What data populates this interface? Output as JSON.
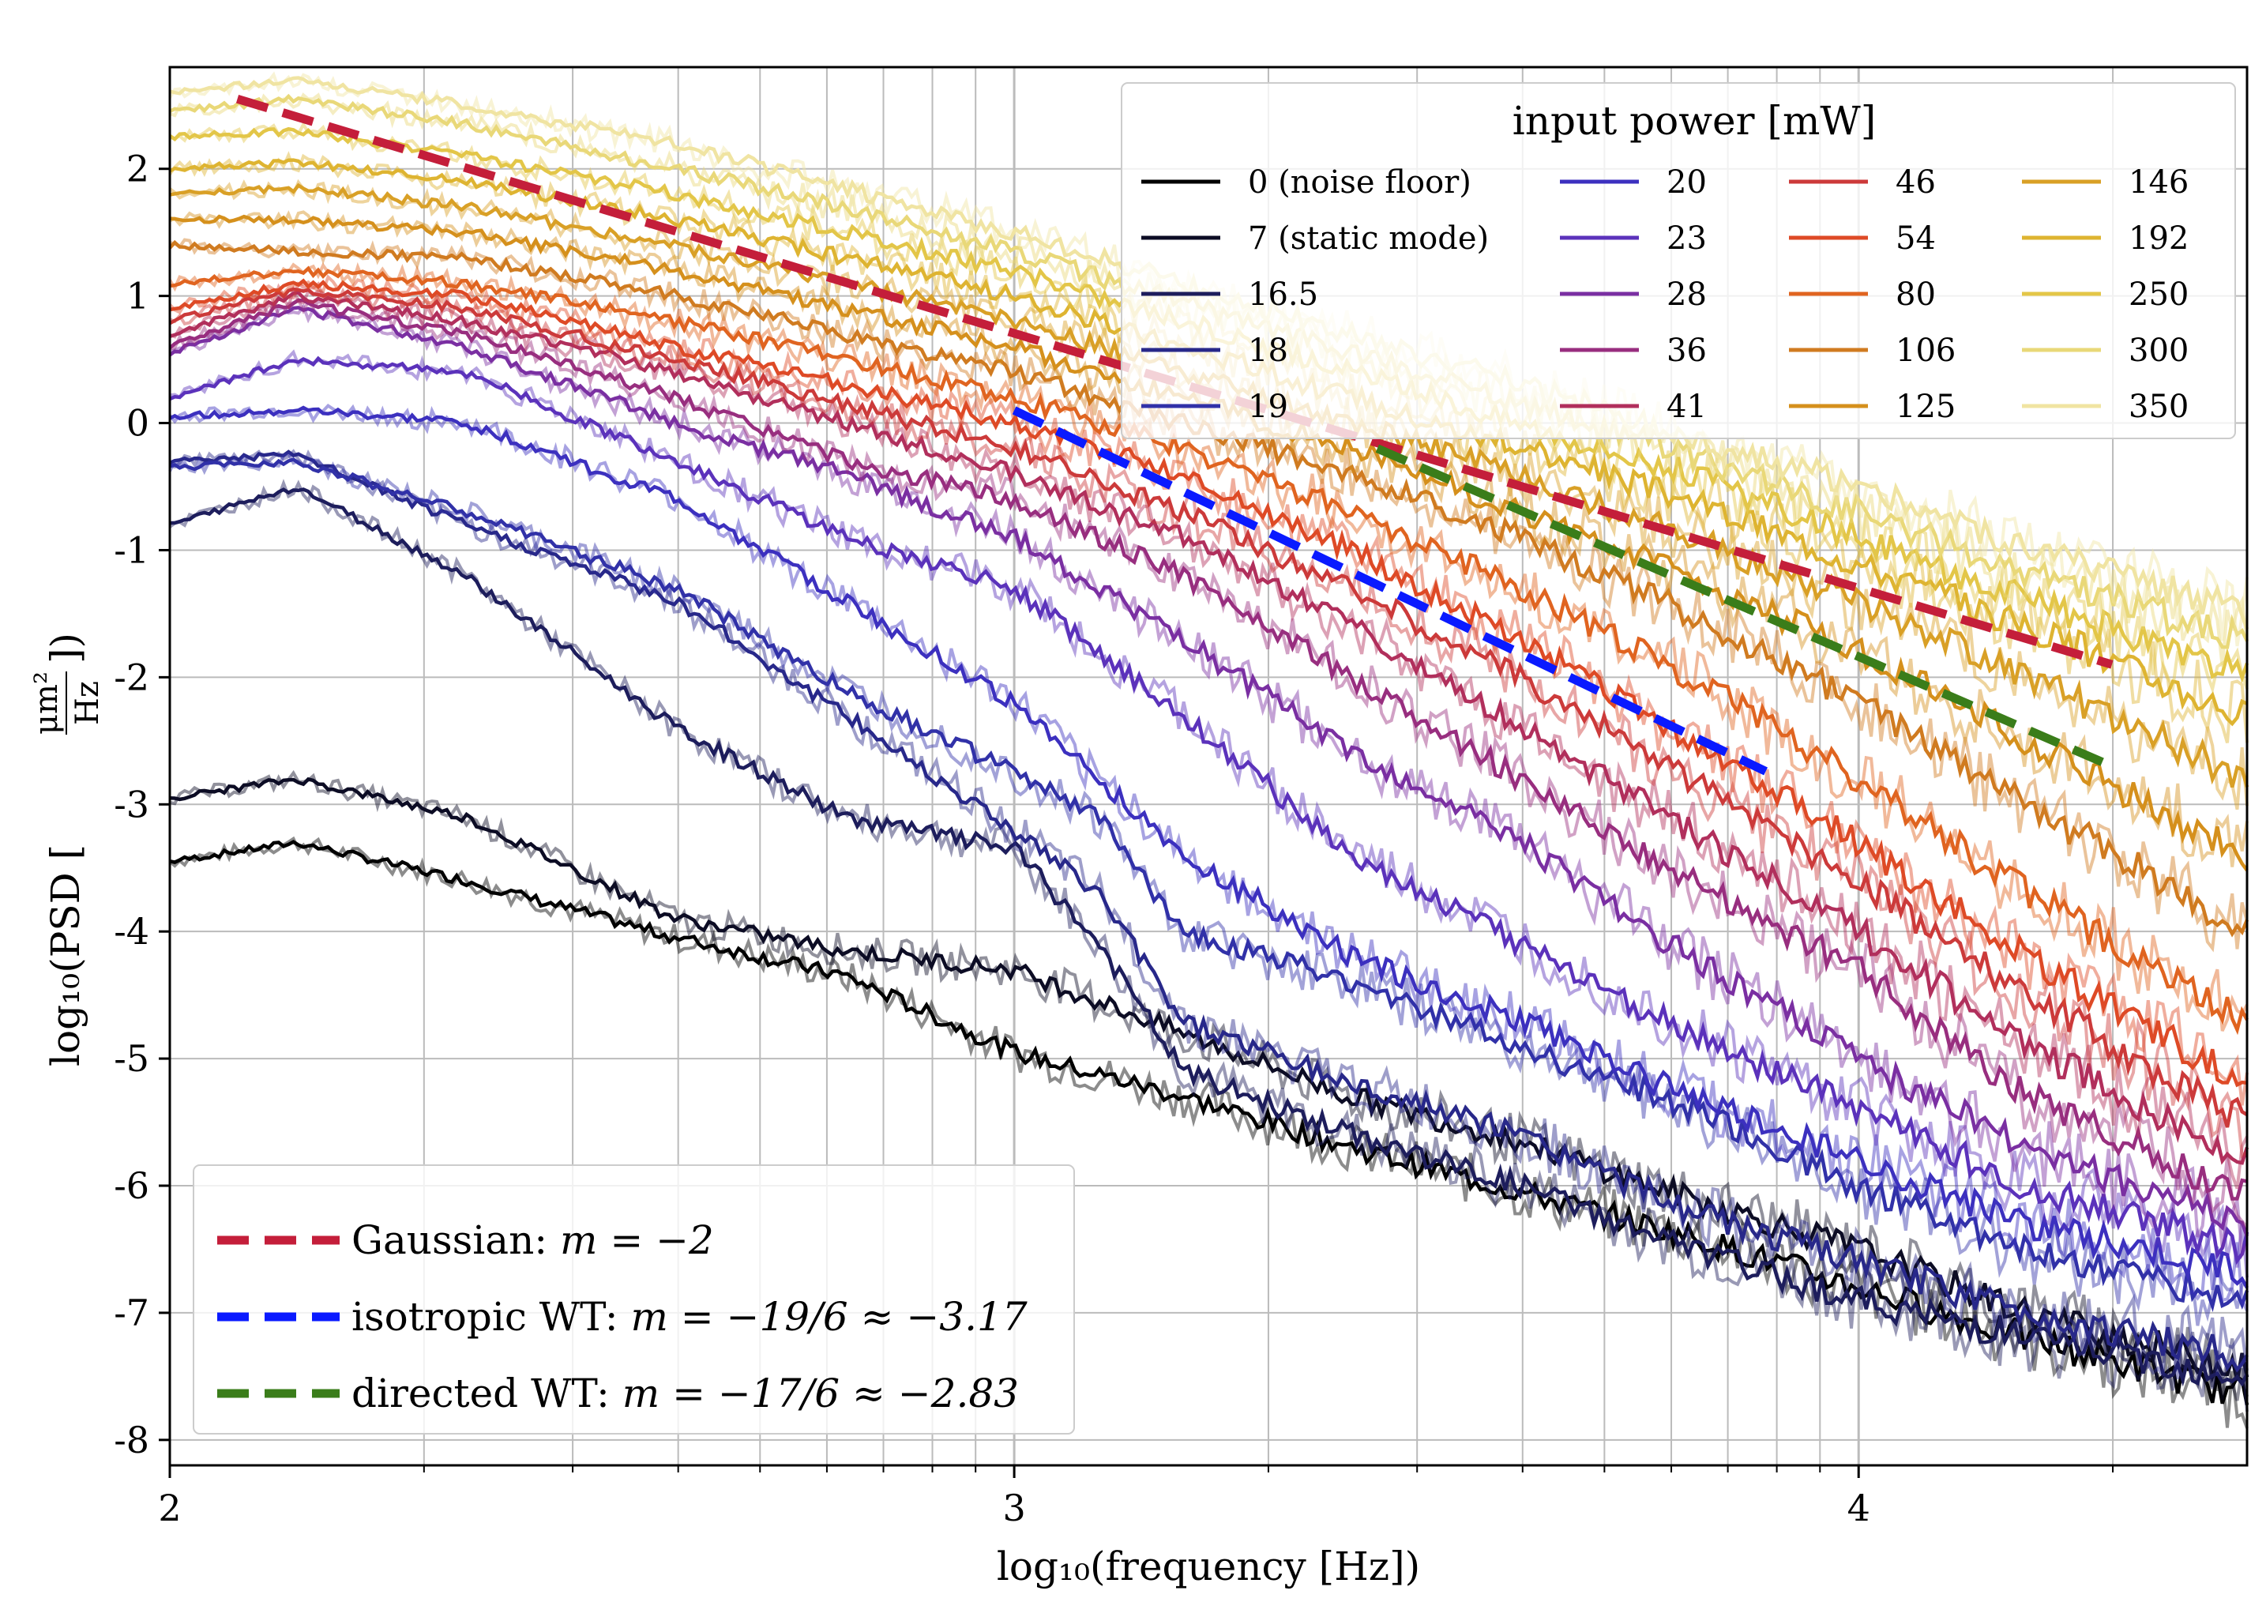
{
  "chart_data": {
    "type": "line",
    "xlabel": "log₁₀(frequency [Hz])",
    "ylabel_main": "log₁₀(PSD [",
    "ylabel_units_num": "μm²",
    "ylabel_units_den": "Hz",
    "xlim": [
      2.0,
      4.46
    ],
    "ylim": [
      -8.2,
      2.8
    ],
    "x_scale": "log",
    "grid": true,
    "xticks_major": [
      "2",
      "3",
      "4"
    ],
    "yticks": [
      "2",
      "1",
      "0",
      "-1",
      "-2",
      "-3",
      "-4",
      "-5",
      "-6",
      "-7",
      "-8"
    ],
    "legend_power": {
      "title": "input power [mW]",
      "placement": "top-right",
      "entries": [
        {
          "label": "0 (noise floor)",
          "color": "#000000"
        },
        {
          "label": "7 (static mode)",
          "color": "#0c0c24"
        },
        {
          "label": "16.5",
          "color": "#1d1d5c"
        },
        {
          "label": "18",
          "color": "#28288a"
        },
        {
          "label": "19",
          "color": "#3131a8"
        },
        {
          "label": "20",
          "color": "#3c30bf"
        },
        {
          "label": "23",
          "color": "#5b32bb"
        },
        {
          "label": "28",
          "color": "#7a2fa2"
        },
        {
          "label": "36",
          "color": "#982e7f"
        },
        {
          "label": "41",
          "color": "#b12f5c"
        },
        {
          "label": "46",
          "color": "#cc3a3a"
        },
        {
          "label": "54",
          "color": "#de4a26"
        },
        {
          "label": "80",
          "color": "#e06420"
        },
        {
          "label": "106",
          "color": "#d07b20"
        },
        {
          "label": "125",
          "color": "#d5901c"
        },
        {
          "label": "146",
          "color": "#d9a026"
        },
        {
          "label": "192",
          "color": "#deb431"
        },
        {
          "label": "250",
          "color": "#e3c648"
        },
        {
          "label": "300",
          "color": "#e9d878"
        },
        {
          "label": "350",
          "color": "#f0e4a2"
        }
      ]
    },
    "legend_fits": {
      "placement": "bottom-left",
      "entries": [
        {
          "label_prefix": "Gaussian: ",
          "label_math": "m = −2",
          "color": "#c41e3a"
        },
        {
          "label_prefix": "isotropic WT: ",
          "label_math": "m = −19/6 ≈ −3.17",
          "color": "#0a1aff"
        },
        {
          "label_prefix": "directed WT: ",
          "label_math": "m = −17/6 ≈ −2.83",
          "color": "#3a7d1a"
        }
      ]
    },
    "fit_lines": [
      {
        "name": "Gaussian",
        "color": "#c41e3a",
        "x": [
          2.08,
          4.3
        ],
        "y": [
          2.55,
          -1.9
        ]
      },
      {
        "name": "isotropic WT",
        "color": "#0a1aff",
        "x": [
          3.0,
          3.89
        ],
        "y": [
          0.1,
          -2.74
        ]
      },
      {
        "name": "directed WT",
        "color": "#3a7d1a",
        "x": [
          3.43,
          4.3
        ],
        "y": [
          -0.2,
          -2.7
        ]
      }
    ],
    "series": [
      {
        "color": "#000000",
        "x": [
          2.0,
          2.15,
          2.35,
          2.6,
          2.8,
          3.0,
          3.2,
          3.4,
          3.6,
          3.8,
          4.0,
          4.2,
          4.46
        ],
        "y": [
          -3.45,
          -3.3,
          -3.6,
          -4.05,
          -4.35,
          -4.95,
          -5.3,
          -5.7,
          -6.05,
          -6.4,
          -6.8,
          -7.2,
          -7.65
        ]
      },
      {
        "color": "#0c0c24",
        "x": [
          2.0,
          2.15,
          2.35,
          2.6,
          2.8,
          3.0,
          3.2,
          3.4,
          3.6,
          3.8,
          4.0,
          4.2,
          4.46
        ],
        "y": [
          -2.95,
          -2.8,
          -3.1,
          -3.9,
          -4.15,
          -4.3,
          -4.8,
          -5.3,
          -5.65,
          -6.1,
          -6.5,
          -7.0,
          -7.45
        ]
      },
      {
        "color": "#1d1d5c",
        "x": [
          2.0,
          2.15,
          2.35,
          2.6,
          2.8,
          3.0,
          3.1,
          3.2,
          3.4,
          3.6,
          3.8,
          4.0,
          4.2,
          4.46
        ],
        "y": [
          -0.8,
          -0.5,
          -1.2,
          -2.4,
          -3.1,
          -3.35,
          -4.1,
          -5.1,
          -5.6,
          -6.0,
          -6.5,
          -6.9,
          -7.2,
          -7.5
        ]
      },
      {
        "color": "#28288a",
        "x": [
          2.0,
          2.15,
          2.35,
          2.6,
          2.8,
          3.0,
          3.1,
          3.2,
          3.4,
          3.6,
          3.8,
          4.0,
          4.2,
          4.46
        ],
        "y": [
          -0.3,
          -0.25,
          -0.8,
          -1.4,
          -2.3,
          -3.2,
          -3.7,
          -4.7,
          -5.2,
          -5.6,
          -6.2,
          -6.6,
          -7.0,
          -7.35
        ]
      },
      {
        "color": "#3131a8",
        "x": [
          2.0,
          2.15,
          2.35,
          2.6,
          2.8,
          3.0,
          3.1,
          3.2,
          3.4,
          3.6,
          3.8,
          4.0,
          4.2,
          4.46
        ],
        "y": [
          -0.35,
          -0.3,
          -0.7,
          -1.3,
          -2.1,
          -2.75,
          -3.1,
          -4.0,
          -4.4,
          -4.9,
          -5.4,
          -6.0,
          -6.5,
          -6.9
        ]
      },
      {
        "color": "#3c30bf",
        "x": [
          2.0,
          2.15,
          2.35,
          2.6,
          2.8,
          3.0,
          3.2,
          3.4,
          3.6,
          3.8,
          4.0,
          4.2,
          4.46
        ],
        "y": [
          0.05,
          0.1,
          0.0,
          -0.6,
          -1.4,
          -2.2,
          -3.4,
          -4.2,
          -4.7,
          -5.3,
          -5.8,
          -6.3,
          -6.7
        ]
      },
      {
        "color": "#5b32bb",
        "x": [
          2.0,
          2.15,
          2.35,
          2.6,
          2.8,
          3.0,
          3.2,
          3.4,
          3.6,
          3.8,
          4.0,
          4.2,
          4.46
        ],
        "y": [
          0.2,
          0.5,
          0.4,
          -0.3,
          -0.9,
          -1.3,
          -2.3,
          -3.4,
          -4.1,
          -4.8,
          -5.4,
          -6.0,
          -6.5
        ]
      },
      {
        "color": "#7a2fa2",
        "x": [
          2.0,
          2.15,
          2.35,
          2.6,
          2.8,
          3.0,
          3.2,
          3.4,
          3.6,
          3.8,
          4.0,
          4.2,
          4.46
        ],
        "y": [
          0.55,
          0.9,
          0.6,
          0.0,
          -0.4,
          -0.9,
          -1.7,
          -2.6,
          -3.3,
          -4.2,
          -5.0,
          -5.7,
          -6.3
        ]
      },
      {
        "color": "#982e7f",
        "x": [
          2.0,
          2.15,
          2.35,
          2.6,
          2.8,
          3.0,
          3.2,
          3.4,
          3.6,
          3.8,
          4.0,
          4.2,
          4.46
        ],
        "y": [
          0.6,
          0.95,
          0.7,
          0.2,
          -0.3,
          -0.6,
          -1.2,
          -2.0,
          -2.8,
          -3.6,
          -4.3,
          -5.3,
          -6.1
        ]
      },
      {
        "color": "#b12f5c",
        "x": [
          2.0,
          2.15,
          2.35,
          2.6,
          2.8,
          3.0,
          3.2,
          3.4,
          3.6,
          3.8,
          4.0,
          4.2,
          4.46
        ],
        "y": [
          0.7,
          1.0,
          0.8,
          0.4,
          0.0,
          -0.4,
          -0.9,
          -1.6,
          -2.4,
          -3.2,
          -4.0,
          -4.9,
          -5.8
        ]
      },
      {
        "color": "#cc3a3a",
        "x": [
          2.0,
          2.15,
          2.35,
          2.6,
          2.8,
          3.0,
          3.2,
          3.4,
          3.6,
          3.8,
          4.0,
          4.2,
          4.46
        ],
        "y": [
          0.8,
          1.05,
          0.9,
          0.5,
          0.15,
          -0.2,
          -0.7,
          -1.3,
          -2.0,
          -2.8,
          -3.6,
          -4.5,
          -5.5
        ]
      },
      {
        "color": "#de4a26",
        "x": [
          2.0,
          2.15,
          2.35,
          2.6,
          2.8,
          3.0,
          3.2,
          3.4,
          3.6,
          3.8,
          4.0,
          4.2,
          4.46
        ],
        "y": [
          0.9,
          1.1,
          1.0,
          0.6,
          0.3,
          0.0,
          -0.4,
          -1.0,
          -1.7,
          -2.5,
          -3.3,
          -4.2,
          -5.2
        ]
      },
      {
        "color": "#e06420",
        "x": [
          2.0,
          2.15,
          2.35,
          2.6,
          2.8,
          3.0,
          3.2,
          3.4,
          3.6,
          3.8,
          4.0,
          4.2,
          4.46
        ],
        "y": [
          1.1,
          1.2,
          1.1,
          0.8,
          0.5,
          0.2,
          -0.2,
          -0.7,
          -1.3,
          -2.0,
          -2.8,
          -3.7,
          -4.7
        ]
      },
      {
        "color": "#d07b20",
        "x": [
          2.0,
          2.15,
          2.35,
          2.6,
          2.8,
          3.0,
          3.2,
          3.4,
          3.6,
          3.8,
          4.0,
          4.2,
          4.46
        ],
        "y": [
          1.4,
          1.35,
          1.3,
          1.0,
          0.7,
          0.4,
          0.0,
          -0.4,
          -0.9,
          -1.5,
          -2.2,
          -3.0,
          -4.0
        ]
      },
      {
        "color": "#d5901c",
        "x": [
          2.0,
          2.15,
          2.35,
          2.6,
          2.8,
          3.0,
          3.2,
          3.4,
          3.6,
          3.8,
          4.0,
          4.2,
          4.46
        ],
        "y": [
          1.6,
          1.6,
          1.5,
          1.2,
          0.9,
          0.6,
          0.2,
          -0.2,
          -0.7,
          -1.2,
          -1.8,
          -2.5,
          -3.4
        ]
      },
      {
        "color": "#d9a026",
        "x": [
          2.0,
          2.15,
          2.35,
          2.6,
          2.8,
          3.0,
          3.2,
          3.4,
          3.6,
          3.8,
          4.0,
          4.2,
          4.46
        ],
        "y": [
          1.8,
          1.85,
          1.7,
          1.4,
          1.1,
          0.8,
          0.4,
          0.0,
          -0.4,
          -0.9,
          -1.4,
          -2.0,
          -2.8
        ]
      },
      {
        "color": "#deb431",
        "x": [
          2.0,
          2.15,
          2.35,
          2.6,
          2.8,
          3.0,
          3.2,
          3.4,
          3.6,
          3.8,
          4.0,
          4.2,
          4.46
        ],
        "y": [
          2.0,
          2.05,
          1.9,
          1.6,
          1.3,
          1.0,
          0.6,
          0.2,
          -0.2,
          -0.6,
          -1.1,
          -1.6,
          -2.3
        ]
      },
      {
        "color": "#e3c648",
        "x": [
          2.0,
          2.15,
          2.35,
          2.6,
          2.8,
          3.0,
          3.2,
          3.4,
          3.6,
          3.8,
          4.0,
          4.2,
          4.46
        ],
        "y": [
          2.25,
          2.3,
          2.1,
          1.8,
          1.5,
          1.2,
          0.8,
          0.4,
          0.0,
          -0.4,
          -0.9,
          -1.4,
          -2.0
        ]
      },
      {
        "color": "#e9d878",
        "x": [
          2.0,
          2.15,
          2.35,
          2.6,
          2.8,
          3.0,
          3.2,
          3.4,
          3.6,
          3.8,
          4.0,
          4.2,
          4.46
        ],
        "y": [
          2.45,
          2.55,
          2.35,
          2.0,
          1.7,
          1.35,
          0.95,
          0.55,
          0.15,
          -0.25,
          -0.7,
          -1.2,
          -1.7
        ]
      },
      {
        "color": "#f0e4a2",
        "x": [
          2.0,
          2.15,
          2.35,
          2.6,
          2.8,
          3.0,
          3.2,
          3.4,
          3.6,
          3.8,
          4.0,
          4.2,
          4.46
        ],
        "y": [
          2.6,
          2.7,
          2.5,
          2.2,
          1.85,
          1.5,
          1.1,
          0.7,
          0.3,
          -0.1,
          -0.5,
          -1.0,
          -1.5
        ]
      }
    ]
  }
}
